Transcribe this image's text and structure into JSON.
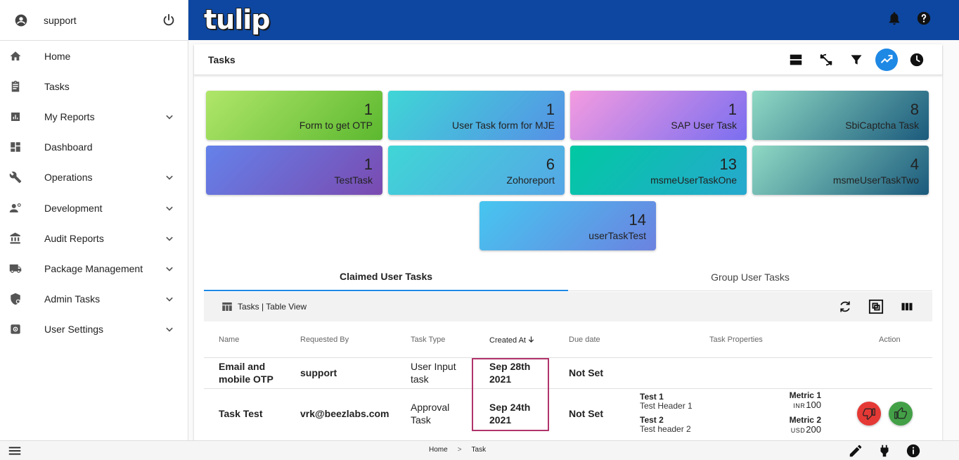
{
  "sidebar": {
    "username": "support",
    "items": [
      {
        "label": "Home",
        "icon": "home-icon",
        "expandable": false
      },
      {
        "label": "Tasks",
        "icon": "clipboard-icon",
        "expandable": false
      },
      {
        "label": "My Reports",
        "icon": "report-icon",
        "expandable": true
      },
      {
        "label": "Dashboard",
        "icon": "dashboard-icon",
        "expandable": false
      },
      {
        "label": "Operations",
        "icon": "wrench-icon",
        "expandable": true
      },
      {
        "label": "Development",
        "icon": "developer-icon",
        "expandable": true
      },
      {
        "label": "Audit Reports",
        "icon": "bank-icon",
        "expandable": true
      },
      {
        "label": "Package Management",
        "icon": "truck-icon",
        "expandable": true
      },
      {
        "label": "Admin Tasks",
        "icon": "admin-shield-icon",
        "expandable": true
      },
      {
        "label": "User Settings",
        "icon": "settings-icon",
        "expandable": true
      }
    ]
  },
  "header": {
    "logo_text": "tulip",
    "brand_color": "#0d47a1"
  },
  "panel": {
    "title": "Tasks"
  },
  "tiles": [
    {
      "count": "1",
      "name": "Form to get OTP"
    },
    {
      "count": "1",
      "name": "User Task form for MJE"
    },
    {
      "count": "1",
      "name": "SAP User Task"
    },
    {
      "count": "8",
      "name": "SbiCaptcha Task"
    },
    {
      "count": "1",
      "name": "TestTask"
    },
    {
      "count": "6",
      "name": "Zohoreport"
    },
    {
      "count": "13",
      "name": "msmeUserTaskOne"
    },
    {
      "count": "4",
      "name": "msmeUserTaskTwo"
    },
    {
      "count": "14",
      "name": "userTaskTest"
    }
  ],
  "tabs": {
    "claimed": "Claimed User Tasks",
    "group": "Group User Tasks"
  },
  "table": {
    "view_label": "Tasks | Table View",
    "columns": {
      "name": "Name",
      "requested_by": "Requested By",
      "task_type": "Task Type",
      "created_at": "Created At",
      "due_date": "Due date",
      "task_properties": "Task Properties",
      "action": "Action"
    },
    "rows": [
      {
        "name_l1": "Email and",
        "name_l2": "mobile OTP",
        "requested_by": "support",
        "type_l1": "User Input",
        "type_l2": "task",
        "created_l1": "Sep 28th",
        "created_l2": "2021",
        "due": "Not Set"
      },
      {
        "name": "Task Test",
        "requested_by": "vrk@beezlabs.com",
        "type_l1": "Approval",
        "type_l2": "Task",
        "created_l1": "Sep 24th",
        "created_l2": "2021",
        "due": "Not Set",
        "props": [
          {
            "title": "Test 1",
            "sub": "Test Header 1"
          },
          {
            "title": "Test 2",
            "sub": "Test header 2"
          }
        ],
        "metrics": [
          {
            "title": "Metric 1",
            "currency": "INR",
            "value": "100"
          },
          {
            "title": "Metric 2",
            "currency": "USD",
            "value": "200"
          }
        ]
      }
    ]
  },
  "footer": {
    "crumb_home": "Home",
    "crumb_sep": ">",
    "crumb_task": "Task"
  }
}
